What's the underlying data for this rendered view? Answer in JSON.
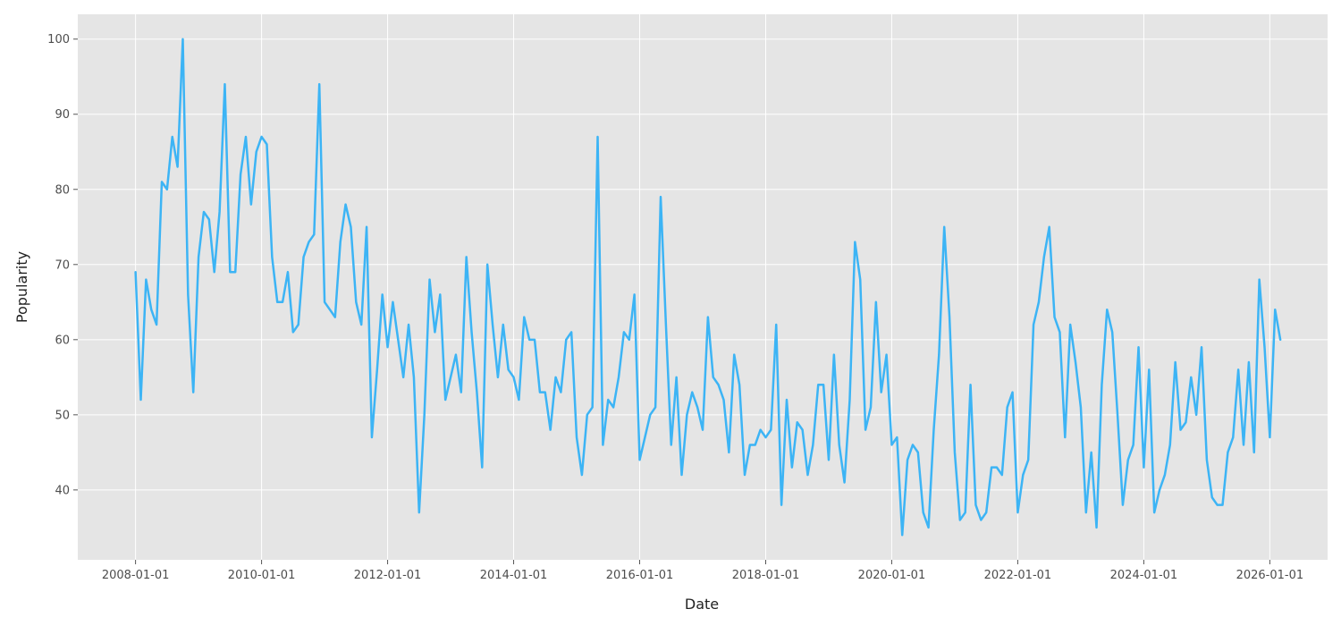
{
  "chart_data": {
    "type": "line",
    "title": "",
    "xlabel": "Date",
    "ylabel": "Popularity",
    "grid": true,
    "background": "#e5e5e5",
    "line_color": "#3cb4f5",
    "x_ticks": [
      "2008-01-01",
      "2010-01-01",
      "2012-01-01",
      "2014-01-01",
      "2016-01-01",
      "2018-01-01",
      "2020-01-01",
      "2022-01-01",
      "2024-01-01",
      "2026-01-01"
    ],
    "y_ticks": [
      40,
      50,
      60,
      70,
      80,
      90,
      100
    ],
    "xlim": [
      "2007-02-01",
      "2026-12-01"
    ],
    "ylim": [
      30.7,
      103.3
    ],
    "x_start": "2008-01",
    "x_step": "1 month",
    "values": [
      69,
      52,
      68,
      64,
      62,
      81,
      80,
      87,
      83,
      100,
      66,
      53,
      71,
      77,
      76,
      69,
      77,
      94,
      69,
      69,
      82,
      87,
      78,
      85,
      87,
      86,
      71,
      65,
      65,
      69,
      61,
      62,
      71,
      73,
      74,
      94,
      65,
      64,
      63,
      73,
      78,
      75,
      65,
      62,
      75,
      47,
      56,
      66,
      59,
      65,
      60,
      55,
      62,
      55,
      37,
      50,
      68,
      61,
      66,
      52,
      55,
      58,
      53,
      71,
      61,
      53,
      43,
      70,
      62,
      55,
      62,
      56,
      55,
      52,
      63,
      60,
      60,
      53,
      53,
      48,
      55,
      53,
      60,
      61,
      47,
      42,
      50,
      51,
      87,
      46,
      52,
      51,
      55,
      61,
      60,
      66,
      44,
      47,
      50,
      51,
      79,
      62,
      46,
      55,
      42,
      50,
      53,
      51,
      48,
      63,
      55,
      54,
      52,
      45,
      58,
      54,
      42,
      46,
      46,
      48,
      47,
      48,
      62,
      38,
      52,
      43,
      49,
      48,
      42,
      46,
      54,
      54,
      44,
      58,
      46,
      41,
      52,
      73,
      68,
      48,
      51,
      65,
      53,
      58,
      46,
      47,
      34,
      44,
      46,
      45,
      37,
      35,
      48,
      58,
      75,
      63,
      45,
      36,
      37,
      54,
      38,
      36,
      37,
      43,
      43,
      42,
      51,
      53,
      37,
      42,
      44,
      62,
      65,
      71,
      75,
      63,
      61,
      47,
      62,
      57,
      51,
      37,
      45,
      35,
      54,
      64,
      61,
      50,
      38,
      44,
      46,
      59,
      43,
      56,
      37,
      40,
      42,
      46,
      57,
      48,
      49,
      55,
      50,
      59,
      44,
      39,
      38,
      38,
      45,
      47,
      56,
      46,
      57,
      45,
      68,
      59,
      47,
      64,
      60
    ]
  }
}
